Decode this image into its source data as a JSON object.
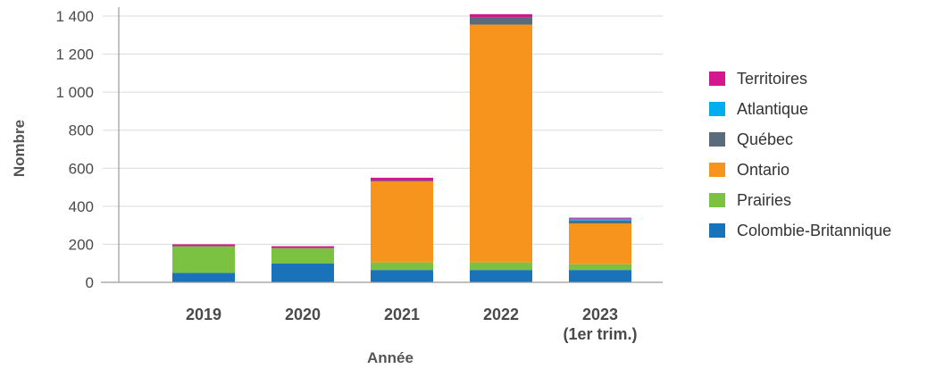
{
  "chart_data": {
    "type": "bar",
    "stacked": true,
    "categories": [
      {
        "line1": "2019",
        "line2": ""
      },
      {
        "line1": "2020",
        "line2": ""
      },
      {
        "line1": "2021",
        "line2": ""
      },
      {
        "line1": "2022",
        "line2": ""
      },
      {
        "line1": "2023",
        "line2": "(1er trim.)"
      }
    ],
    "series": [
      {
        "name": "Colombie-Britannique",
        "color": "#1a72b8",
        "values": [
          50,
          100,
          65,
          65,
          65
        ]
      },
      {
        "name": "Prairies",
        "color": "#7cc242",
        "values": [
          140,
          80,
          40,
          40,
          30
        ]
      },
      {
        "name": "Ontario",
        "color": "#f7941d",
        "values": [
          0,
          0,
          425,
          1250,
          215
        ]
      },
      {
        "name": "Québec",
        "color": "#5a6b7b",
        "values": [
          0,
          0,
          5,
          40,
          15
        ]
      },
      {
        "name": "Atlantique",
        "color": "#00aeef",
        "values": [
          0,
          0,
          0,
          0,
          10
        ]
      },
      {
        "name": "Territoires",
        "color": "#d4178c",
        "values": [
          10,
          10,
          15,
          15,
          5
        ]
      }
    ],
    "legend_order": [
      "Territoires",
      "Atlantique",
      "Québec",
      "Ontario",
      "Prairies",
      "Colombie-Britannique"
    ],
    "xlabel": "Année",
    "ylabel": "Nombre",
    "ylim": [
      0,
      1400
    ],
    "yticks": [
      {
        "value": 0,
        "label": "0"
      },
      {
        "value": 200,
        "label": "200"
      },
      {
        "value": 400,
        "label": "400"
      },
      {
        "value": 600,
        "label": "600"
      },
      {
        "value": 800,
        "label": "800"
      },
      {
        "value": 1000,
        "label": "1 000"
      },
      {
        "value": 1200,
        "label": "1 200"
      },
      {
        "value": 1400,
        "label": "1 400"
      }
    ],
    "grid": true,
    "legend_position": "right"
  }
}
